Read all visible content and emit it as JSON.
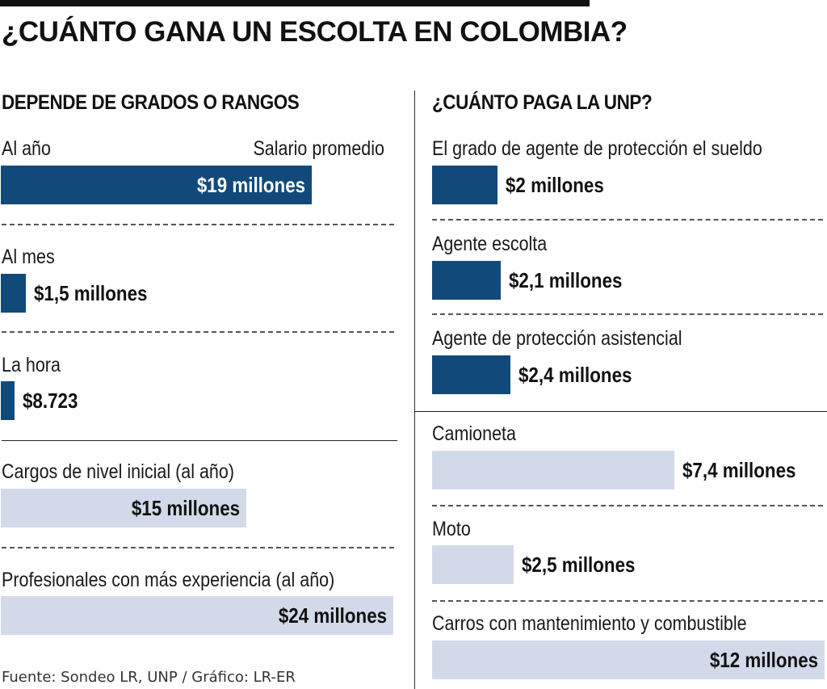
{
  "title": "¿CUÁNTO GANA UN ESCOLTA EN COLOMBIA?",
  "source": "Fuente: Sondeo LR, UNP / Gráfico: LR-ER",
  "colors": {
    "dark_bar": "#114a7a",
    "light_bar": "#d2daea",
    "text": "#111111"
  },
  "chart_data": [
    {
      "type": "bar",
      "title": "DEPENDE DE GRADOS O RANGOS",
      "legend": "Salario promedio",
      "items": [
        {
          "label": "Al año",
          "value_label": "$19  millones",
          "value": 19000000,
          "style": "dark"
        },
        {
          "label": "Al mes",
          "value_label": "$1,5 millones",
          "value": 1500000,
          "style": "dark"
        },
        {
          "label": "La hora",
          "value_label": "$8.723",
          "value": 8723,
          "style": "dark"
        },
        {
          "label": "Cargos de nivel inicial (al año)",
          "value_label": "$15 millones",
          "value": 15000000,
          "style": "light"
        },
        {
          "label": "Profesionales con más experiencia (al año)",
          "value_label": "$24 millones",
          "value": 24000000,
          "style": "light"
        }
      ]
    },
    {
      "type": "bar",
      "title": "¿CUÁNTO PAGA LA UNP?",
      "items": [
        {
          "label": "El grado de agente de protección el sueldo",
          "value_label": "$2 millones",
          "value": 2000000,
          "style": "dark"
        },
        {
          "label": "Agente escolta",
          "value_label": "$2,1 millones",
          "value": 2100000,
          "style": "dark"
        },
        {
          "label": "Agente de protección asistencial",
          "value_label": "$2,4 millones",
          "value": 2400000,
          "style": "dark"
        },
        {
          "label": "Camioneta",
          "value_label": "$7,4 millones",
          "value": 7400000,
          "style": "light"
        },
        {
          "label": "Moto",
          "value_label": "$2,5 millones",
          "value": 2500000,
          "style": "light"
        },
        {
          "label": "Carros con mantenimiento y combustible",
          "value_label": "$12 millones",
          "value": 12000000,
          "style": "light"
        }
      ]
    }
  ]
}
